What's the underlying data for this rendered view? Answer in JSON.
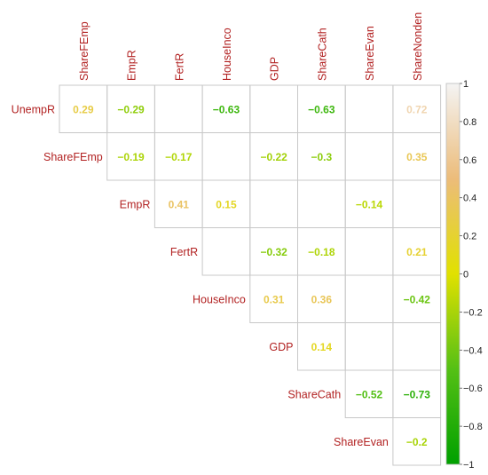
{
  "chart_data": {
    "type": "heatmap",
    "variables": [
      "UnempR",
      "ShareFEmp",
      "EmpR",
      "FertR",
      "HouseInco",
      "GDP",
      "ShareCath",
      "ShareEvan",
      "ShareNonden"
    ],
    "row_labels": [
      "UnempR",
      "ShareFEmp",
      "EmpR",
      "FertR",
      "HouseInco",
      "GDP",
      "ShareCath",
      "ShareEvan"
    ],
    "column_labels": [
      "ShareFEmp",
      "EmpR",
      "FertR",
      "HouseInco",
      "GDP",
      "ShareCath",
      "ShareEvan",
      "ShareNonden"
    ],
    "cells": [
      {
        "row": "UnempR",
        "col": "ShareFEmp",
        "value": 0.29,
        "label": "0.29"
      },
      {
        "row": "UnempR",
        "col": "EmpR",
        "value": -0.29,
        "label": "−0.29"
      },
      {
        "row": "UnempR",
        "col": "HouseInco",
        "value": -0.63,
        "label": "−0.63"
      },
      {
        "row": "UnempR",
        "col": "ShareCath",
        "value": -0.63,
        "label": "−0.63"
      },
      {
        "row": "UnempR",
        "col": "ShareNonden",
        "value": 0.72,
        "label": "0.72"
      },
      {
        "row": "ShareFEmp",
        "col": "EmpR",
        "value": -0.19,
        "label": "−0.19"
      },
      {
        "row": "ShareFEmp",
        "col": "FertR",
        "value": -0.17,
        "label": "−0.17"
      },
      {
        "row": "ShareFEmp",
        "col": "GDP",
        "value": -0.22,
        "label": "−0.22"
      },
      {
        "row": "ShareFEmp",
        "col": "ShareCath",
        "value": -0.3,
        "label": "−0.3"
      },
      {
        "row": "ShareFEmp",
        "col": "ShareNonden",
        "value": 0.35,
        "label": "0.35"
      },
      {
        "row": "EmpR",
        "col": "FertR",
        "value": 0.41,
        "label": "0.41"
      },
      {
        "row": "EmpR",
        "col": "HouseInco",
        "value": 0.15,
        "label": "0.15"
      },
      {
        "row": "EmpR",
        "col": "ShareEvan",
        "value": -0.14,
        "label": "−0.14"
      },
      {
        "row": "FertR",
        "col": "GDP",
        "value": -0.32,
        "label": "−0.32"
      },
      {
        "row": "FertR",
        "col": "ShareCath",
        "value": -0.18,
        "label": "−0.18"
      },
      {
        "row": "FertR",
        "col": "ShareNonden",
        "value": 0.21,
        "label": "0.21"
      },
      {
        "row": "HouseInco",
        "col": "GDP",
        "value": 0.31,
        "label": "0.31"
      },
      {
        "row": "HouseInco",
        "col": "ShareCath",
        "value": 0.36,
        "label": "0.36"
      },
      {
        "row": "HouseInco",
        "col": "ShareNonden",
        "value": -0.42,
        "label": "−0.42"
      },
      {
        "row": "GDP",
        "col": "ShareCath",
        "value": 0.14,
        "label": "0.14"
      },
      {
        "row": "ShareCath",
        "col": "ShareEvan",
        "value": -0.52,
        "label": "−0.52"
      },
      {
        "row": "ShareCath",
        "col": "ShareNonden",
        "value": -0.73,
        "label": "−0.73"
      },
      {
        "row": "ShareEvan",
        "col": "ShareNonden",
        "value": -0.2,
        "label": "−0.2"
      }
    ],
    "value_range": [
      -1,
      1
    ],
    "colorbar": {
      "ticks": [
        1,
        0.8,
        0.6,
        0.4,
        0.2,
        0,
        -0.2,
        -0.4,
        -0.6,
        -0.8,
        -1
      ],
      "tick_labels": [
        "1",
        "0.8",
        "0.6",
        "0.4",
        "0.2",
        "0",
        "−0.2",
        "−0.4",
        "−0.6",
        "−0.8",
        "−1"
      ],
      "placement": "right"
    },
    "colors": {
      "label": "#b22222",
      "grid": "#c8c8c8",
      "scale": [
        {
          "v": -1,
          "c": "#00a000"
        },
        {
          "v": -0.5,
          "c": "#55c015"
        },
        {
          "v": 0,
          "c": "#e1e100"
        },
        {
          "v": 0.5,
          "c": "#ecbc7a"
        },
        {
          "v": 1,
          "c": "#f4f4f4"
        }
      ]
    }
  }
}
